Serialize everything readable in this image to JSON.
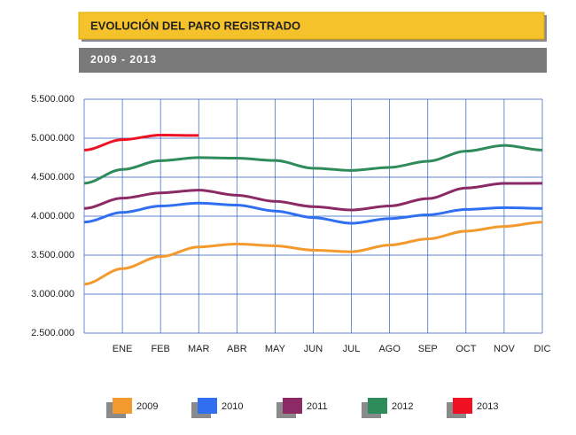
{
  "chart_data": {
    "type": "line",
    "title": "EVOLUCIÓN DEL PARO REGISTRADO",
    "subtitle": "2009 - 2013",
    "categories": [
      null,
      "ENE",
      "FEB",
      "MAR",
      "ABR",
      "MAY",
      "JUN",
      "JUL",
      "AGO",
      "SEP",
      "OCT",
      "NOV",
      "DIC"
    ],
    "series": [
      {
        "name": "2009",
        "color": "#f39a2e",
        "values": [
          3128000,
          3327000,
          3482000,
          3605000,
          3644000,
          3620000,
          3564000,
          3544000,
          3629000,
          3709000,
          3808000,
          3868000,
          3924000
        ]
      },
      {
        "name": "2010",
        "color": "#2f6ff0",
        "values": [
          3924000,
          4048000,
          4130000,
          4167000,
          4142000,
          4066000,
          3982000,
          3909000,
          3969000,
          4017000,
          4086000,
          4110000,
          4100000
        ]
      },
      {
        "name": "2011",
        "color": "#8c2a66",
        "values": [
          4100000,
          4231000,
          4299000,
          4334000,
          4269000,
          4190000,
          4122000,
          4080000,
          4131000,
          4226000,
          4361000,
          4420000,
          4422000
        ]
      },
      {
        "name": "2012",
        "color": "#2e8b5a",
        "values": [
          4422000,
          4600000,
          4712000,
          4751000,
          4744000,
          4714000,
          4615000,
          4587000,
          4625000,
          4705000,
          4834000,
          4908000,
          4848000
        ]
      },
      {
        "name": "2013",
        "color": "#ee1122",
        "values": [
          4848000,
          4981000,
          5040000,
          5035000,
          null,
          null,
          null,
          null,
          null,
          null,
          null,
          null,
          null
        ]
      }
    ],
    "ylim": [
      2500000,
      5500000
    ],
    "yticks": [
      {
        "value": 2500000,
        "label": "2.500.000"
      },
      {
        "value": 3000000,
        "label": "3.000.000"
      },
      {
        "value": 3500000,
        "label": "3.500.000"
      },
      {
        "value": 4000000,
        "label": "4.000.000"
      },
      {
        "value": 4500000,
        "label": "4.500.000"
      },
      {
        "value": 5000000,
        "label": "5.000.000"
      },
      {
        "value": 5500000,
        "label": "5.500.000"
      }
    ],
    "grid": true,
    "legend": "bottom"
  }
}
